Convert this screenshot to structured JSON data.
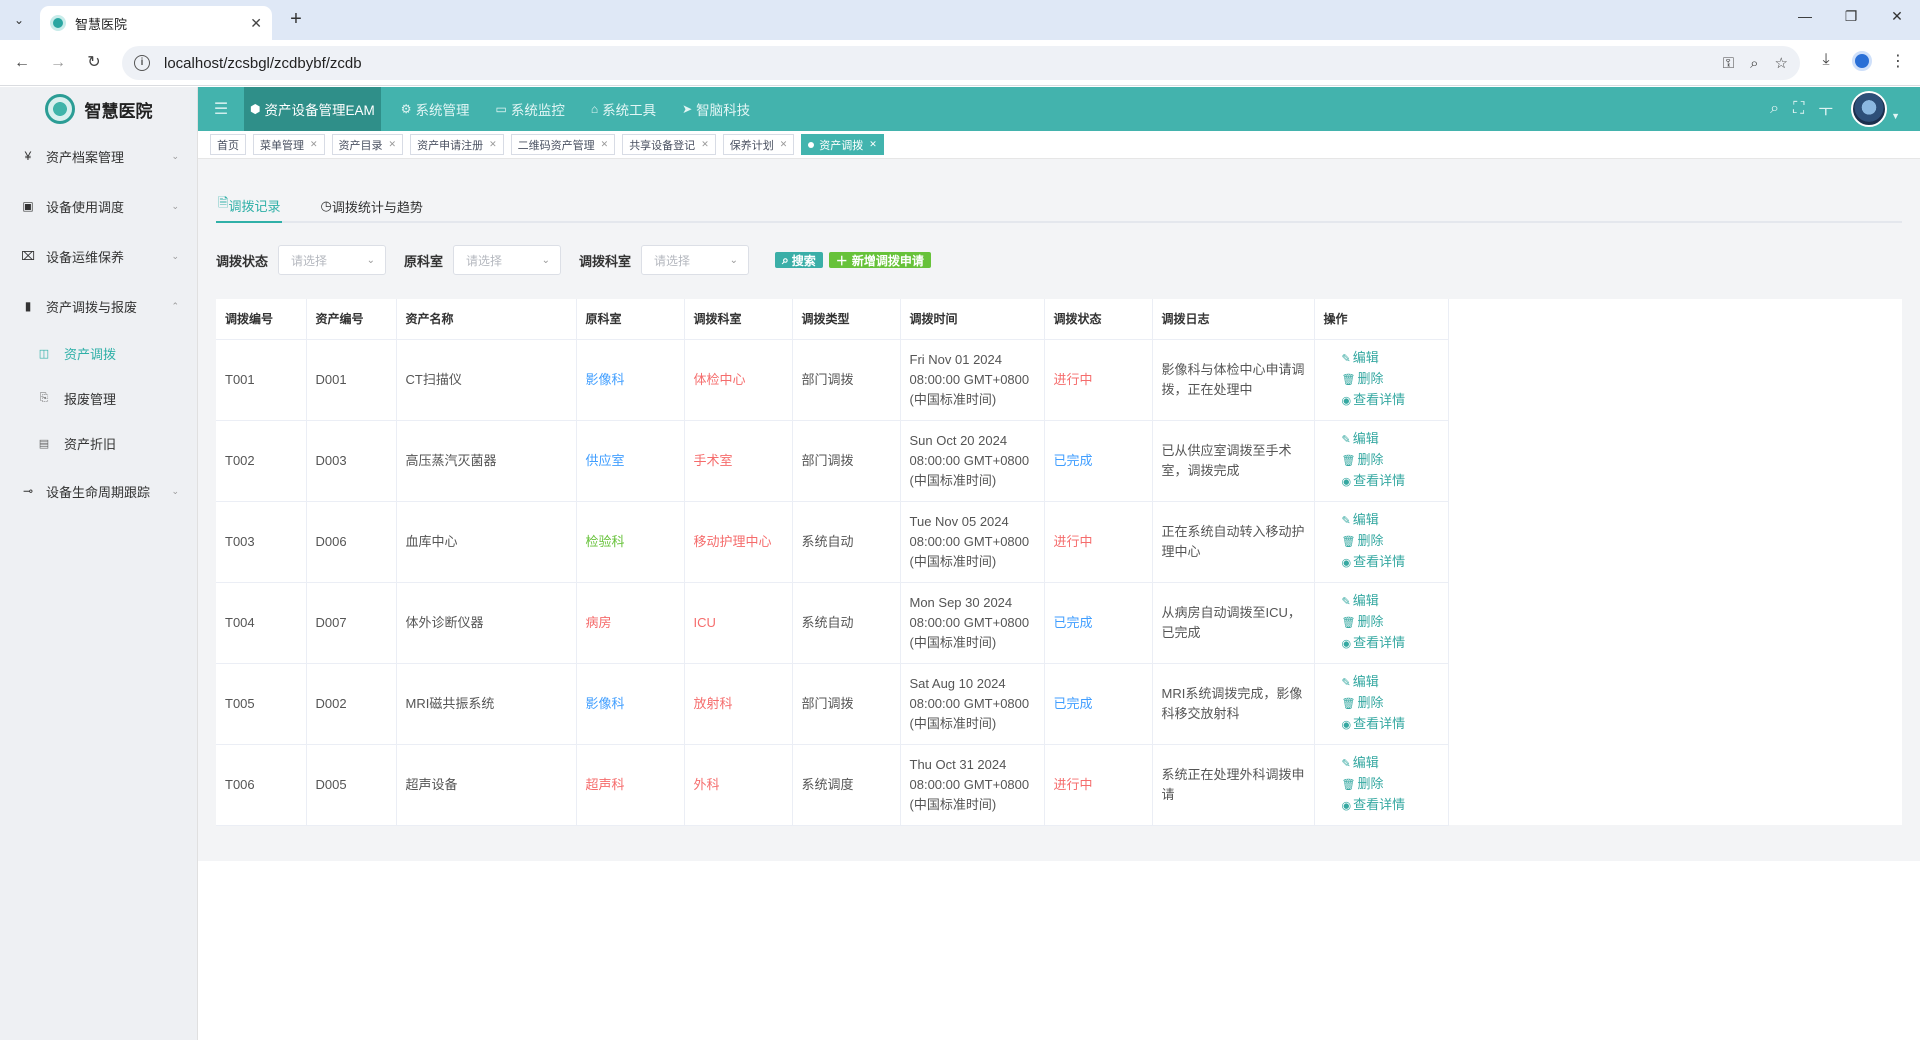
{
  "browser": {
    "tab_title": "智慧医院",
    "url": "localhost/zcsbgl/zcdbybf/zcdb"
  },
  "sidebar": {
    "brand": "智慧医院",
    "items": [
      {
        "icon": "¥",
        "label": "资产档案管理",
        "arrow": "⌄"
      },
      {
        "icon": "▣",
        "label": "设备使用调度",
        "arrow": "⌄"
      },
      {
        "icon": "⌧",
        "label": "设备运维保养",
        "arrow": "⌄"
      },
      {
        "icon": "▮",
        "label": "资产调拨与报废",
        "arrow": "⌃"
      }
    ],
    "sub_items": [
      {
        "icon": "◫",
        "label": "资产调拨"
      },
      {
        "icon": "⎘",
        "label": "报废管理"
      },
      {
        "icon": "▤",
        "label": "资产折旧"
      }
    ],
    "last_item": {
      "icon": "⊸",
      "label": "设备生命周期跟踪",
      "arrow": "⌄"
    }
  },
  "topnav": {
    "items": [
      {
        "icon": "⬢",
        "label": "资产设备管理EAM"
      },
      {
        "icon": "⚙",
        "label": "系统管理"
      },
      {
        "icon": "▭",
        "label": "系统监控"
      },
      {
        "icon": "⌂",
        "label": "系统工具"
      },
      {
        "icon": "➤",
        "label": "智脑科技"
      }
    ]
  },
  "tags": [
    "首页",
    "菜单管理",
    "资产目录",
    "资产申请注册",
    "二维码资产管理",
    "共享设备登记",
    "保养计划",
    "资产调拨"
  ],
  "subtabs": [
    "调拨记录",
    "调拨统计与趋势"
  ],
  "filters": {
    "status_label": "调拨状态",
    "status_placeholder": "请选择",
    "origin_label": "原科室",
    "origin_placeholder": "请选择",
    "target_label": "调拨科室",
    "target_placeholder": "请选择",
    "search_btn": "搜索",
    "add_btn": "新增调拨申请"
  },
  "table": {
    "headers": [
      "调拨编号",
      "资产编号",
      "资产名称",
      "原科室",
      "调拨科室",
      "调拨类型",
      "调拨时间",
      "调拨状态",
      "调拨日志",
      "操作"
    ],
    "ops": [
      "编辑",
      "删除",
      "查看详情"
    ],
    "rows": [
      {
        "id": "T001",
        "asset": "D001",
        "name": "CT扫描仪",
        "origin": "影像科",
        "target": "体检中心",
        "type": "部门调拨",
        "time": "Fri Nov 01 2024 08:00:00 GMT+0800 (中国标准时间)",
        "status": "进行中",
        "log": "影像科与体检中心申请调拨，正在处理中"
      },
      {
        "id": "T002",
        "asset": "D003",
        "name": "高压蒸汽灭菌器",
        "origin": "供应室",
        "target": "手术室",
        "type": "部门调拨",
        "time": "Sun Oct 20 2024 08:00:00 GMT+0800 (中国标准时间)",
        "status": "已完成",
        "log": "已从供应室调拨至手术室，调拨完成"
      },
      {
        "id": "T003",
        "asset": "D006",
        "name": "血库中心",
        "origin": "检验科",
        "target": "移动护理中心",
        "type": "系统自动",
        "time": "Tue Nov 05 2024 08:00:00 GMT+0800 (中国标准时间)",
        "status": "进行中",
        "log": "正在系统自动转入移动护理中心"
      },
      {
        "id": "T004",
        "asset": "D007",
        "name": "体外诊断仪器",
        "origin": "病房",
        "target": "ICU",
        "type": "系统自动",
        "time": "Mon Sep 30 2024 08:00:00 GMT+0800 (中国标准时间)",
        "status": "已完成",
        "log": "从病房自动调拨至ICU，已完成"
      },
      {
        "id": "T005",
        "asset": "D002",
        "name": "MRI磁共振系统",
        "origin": "影像科",
        "target": "放射科",
        "type": "部门调拨",
        "time": "Sat Aug 10 2024 08:00:00 GMT+0800 (中国标准时间)",
        "status": "已完成",
        "log": "MRI系统调拨完成，影像科移交放射科"
      },
      {
        "id": "T006",
        "asset": "D005",
        "name": "超声设备",
        "origin": "超声科",
        "target": "外科",
        "type": "系统调度",
        "time": "Thu Oct 31 2024 08:00:00 GMT+0800 (中国标准时间)",
        "status": "进行中",
        "log": "系统正在处理外科调拨申请"
      }
    ]
  },
  "colors": {
    "accent": "#43b3ad",
    "accent_dark": "#2f8f89",
    "link": "#409eff",
    "danger": "#f56c6c",
    "success": "#67c23a"
  }
}
